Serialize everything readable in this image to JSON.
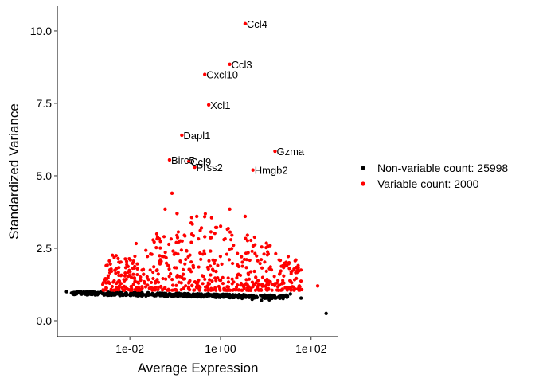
{
  "chart_data": {
    "type": "scatter",
    "title": "",
    "xlabel": "Average Expression",
    "ylabel": "Standardized Variance",
    "x_scale": "log10",
    "xlim": [
      0.00025,
      400
    ],
    "ylim": [
      -0.55,
      10.85
    ],
    "x_ticks": [
      {
        "value": 0.01,
        "label": "1e-02"
      },
      {
        "value": 1,
        "label": "1e+00"
      },
      {
        "value": 100,
        "label": "1e+02"
      }
    ],
    "y_ticks": [
      {
        "value": 0.0,
        "label": "0.0"
      },
      {
        "value": 2.5,
        "label": "2.5"
      },
      {
        "value": 5.0,
        "label": "5.0"
      },
      {
        "value": 7.5,
        "label": "7.5"
      },
      {
        "value": 10.0,
        "label": "10.0"
      }
    ],
    "grid": false,
    "legend_position": "right",
    "series": [
      {
        "name": "Non-variable count: 25998",
        "color": "#000000",
        "points": [
          [
            0.0004,
            1.0
          ],
          [
            0.0006,
            0.97
          ],
          [
            0.001,
            0.96
          ],
          [
            0.0015,
            0.95
          ],
          [
            0.002,
            0.94
          ],
          [
            0.003,
            0.93
          ],
          [
            0.005,
            0.92
          ],
          [
            0.008,
            0.91
          ],
          [
            0.012,
            0.92
          ],
          [
            0.02,
            0.9
          ],
          [
            0.03,
            0.9
          ],
          [
            0.05,
            0.89
          ],
          [
            0.08,
            0.9
          ],
          [
            0.12,
            0.88
          ],
          [
            0.2,
            0.87
          ],
          [
            0.3,
            0.86
          ],
          [
            0.5,
            0.85
          ],
          [
            0.8,
            0.84
          ],
          [
            1.2,
            0.82
          ],
          [
            2,
            0.8
          ],
          [
            3,
            0.77
          ],
          [
            5,
            0.74
          ],
          [
            8,
            0.7
          ],
          [
            12,
            0.72
          ],
          [
            20,
            0.8
          ],
          [
            28,
            0.88
          ],
          [
            35,
            0.92
          ],
          [
            60,
            0.78
          ],
          [
            215,
            0.25
          ]
        ]
      },
      {
        "name": "Variable count: 2000",
        "color": "#ff0000",
        "points": [
          [
            3.5,
            10.25
          ],
          [
            1.6,
            8.85
          ],
          [
            0.45,
            8.5
          ],
          [
            0.55,
            7.45
          ],
          [
            0.14,
            6.4
          ],
          [
            16,
            5.85
          ],
          [
            0.075,
            5.55
          ],
          [
            0.2,
            5.5
          ],
          [
            0.27,
            5.3
          ],
          [
            5.2,
            5.2
          ],
          [
            0.085,
            4.4
          ],
          [
            0.06,
            3.85
          ],
          [
            0.11,
            3.7
          ],
          [
            0.3,
            3.6
          ],
          [
            1.6,
            3.85
          ],
          [
            3.5,
            3.6
          ],
          [
            0.38,
            3.2
          ],
          [
            0.16,
            2.95
          ],
          [
            0.45,
            2.9
          ],
          [
            1.2,
            2.8
          ],
          [
            0.6,
            2.4
          ],
          [
            0.09,
            2.4
          ],
          [
            0.003,
            1.9
          ],
          [
            0.005,
            1.8
          ],
          [
            0.01,
            1.7
          ],
          [
            0.02,
            1.6
          ],
          [
            0.04,
            1.75
          ],
          [
            0.07,
            1.9
          ],
          [
            0.15,
            1.6
          ],
          [
            0.25,
            1.9
          ],
          [
            0.8,
            1.7
          ],
          [
            2.5,
            1.6
          ],
          [
            6,
            1.5
          ],
          [
            10,
            1.4
          ],
          [
            25,
            1.3
          ],
          [
            55,
            1.2
          ],
          [
            140,
            1.2
          ]
        ]
      }
    ],
    "annotations": [
      {
        "text": "Ccl4",
        "x": 3.5,
        "y": 10.25
      },
      {
        "text": "Ccl3",
        "x": 1.6,
        "y": 8.85
      },
      {
        "text": "Cxcl10",
        "x": 0.45,
        "y": 8.5
      },
      {
        "text": "Xcl1",
        "x": 0.55,
        "y": 7.45
      },
      {
        "text": "Dapl1",
        "x": 0.14,
        "y": 6.4
      },
      {
        "text": "Gzma",
        "x": 16,
        "y": 5.85
      },
      {
        "text": "Birc5",
        "x": 0.075,
        "y": 5.55
      },
      {
        "text": "Ccl9",
        "x": 0.2,
        "y": 5.5
      },
      {
        "text": "Prss2",
        "x": 0.27,
        "y": 5.3
      },
      {
        "text": "Hmgb2",
        "x": 5.2,
        "y": 5.2
      }
    ]
  }
}
